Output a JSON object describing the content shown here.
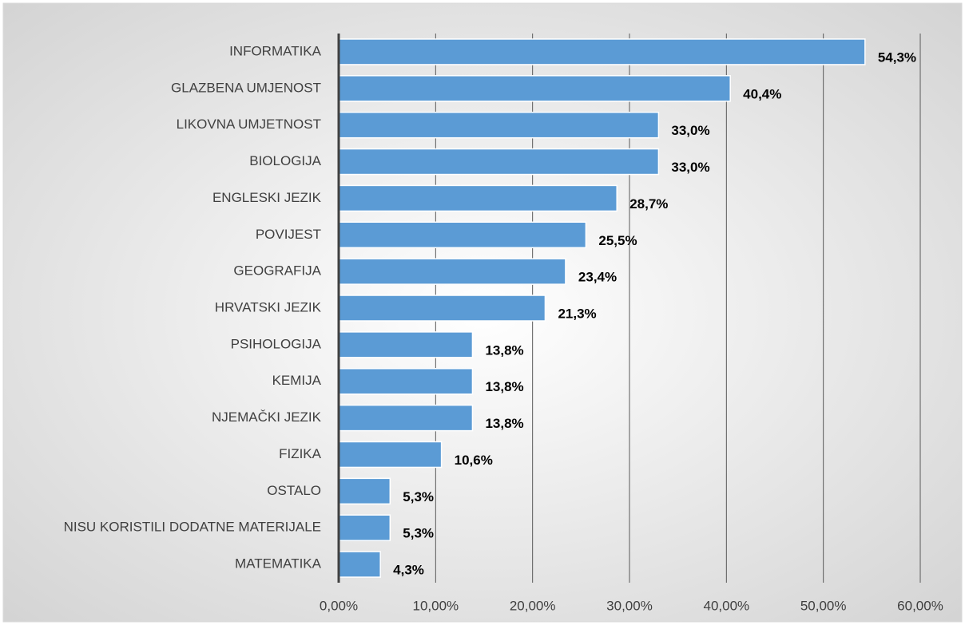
{
  "chart_data": {
    "type": "barh",
    "categories": [
      "INFORMATIKA",
      "GLAZBENA UMJENOST",
      "LIKOVNA UMJETNOST",
      "BIOLOGIJA",
      "ENGLESKI JEZIK",
      "POVIJEST",
      "GEOGRAFIJA",
      "HRVATSKI JEZIK",
      "PSIHOLOGIJA",
      "KEMIJA",
      "NJEMAČKI JEZIK",
      "FIZIKA",
      "OSTALO",
      "NISU KORISTILI DODATNE MATERIJALE",
      "MATEMATIKA"
    ],
    "values": [
      54.3,
      40.4,
      33.0,
      33.0,
      28.7,
      25.5,
      23.4,
      21.3,
      13.8,
      13.8,
      13.8,
      10.6,
      5.3,
      5.3,
      4.3
    ],
    "value_labels": [
      "54,3%",
      "40,4%",
      "33,0%",
      "33,0%",
      "28,7%",
      "25,5%",
      "23,4%",
      "21,3%",
      "13,8%",
      "13,8%",
      "13,8%",
      "10,6%",
      "5,3%",
      "5,3%",
      "4,3%"
    ],
    "color": "#5b9bd5",
    "xlim": [
      0,
      60
    ],
    "xticks": [
      {
        "value": 0,
        "label": "0,00%"
      },
      {
        "value": 10,
        "label": "10,00%"
      },
      {
        "value": 20,
        "label": "20,00%"
      },
      {
        "value": 30,
        "label": "30,00%"
      },
      {
        "value": 40,
        "label": "40,00%"
      },
      {
        "value": 50,
        "label": "50,00%"
      },
      {
        "value": 60,
        "label": "60,00%"
      }
    ],
    "grid": true
  }
}
